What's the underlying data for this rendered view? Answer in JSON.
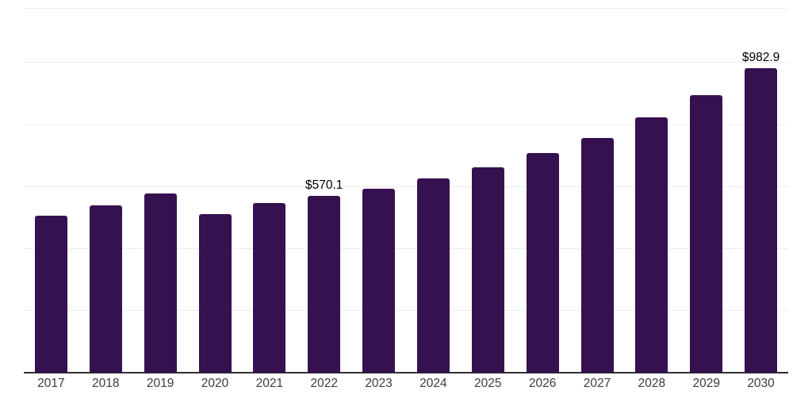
{
  "chart_data": {
    "type": "bar",
    "title": "",
    "xlabel": "",
    "ylabel": "",
    "categories": [
      "2017",
      "2018",
      "2019",
      "2020",
      "2021",
      "2022",
      "2023",
      "2024",
      "2025",
      "2026",
      "2027",
      "2028",
      "2029",
      "2030"
    ],
    "values": [
      505,
      539,
      577,
      512,
      548,
      570.1,
      594,
      626,
      663,
      707,
      757,
      823,
      895,
      982.9
    ],
    "data_labels": [
      null,
      null,
      null,
      null,
      null,
      "$570.1",
      null,
      null,
      null,
      null,
      null,
      null,
      null,
      "$982.9"
    ],
    "ylim": [
      0,
      1176
    ],
    "gridline_values": [
      200,
      400,
      600,
      800,
      1000,
      1176
    ],
    "grid": "horizontal-only",
    "legend": "none",
    "colors": {
      "bar": "#351150",
      "gridline": "#ececec",
      "axis_line": "#2f2f2f",
      "tick_label": "#3b3b3b",
      "data_label": "#000000",
      "background": "#ffffff"
    }
  }
}
